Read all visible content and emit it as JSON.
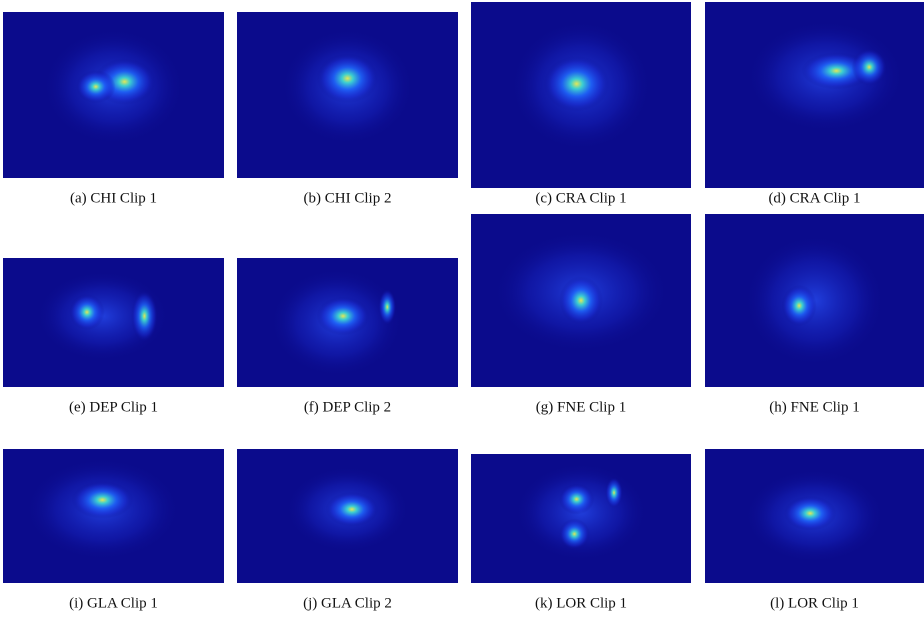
{
  "figure": {
    "panels": [
      {
        "caption": "(a) CHI Clip 1"
      },
      {
        "caption": "(b) CHI Clip 2"
      },
      {
        "caption": "(c) CRA Clip 1"
      },
      {
        "caption": "(d) CRA Clip 1"
      },
      {
        "caption": "(e) DEP Clip 1"
      },
      {
        "caption": "(f) DEP Clip 2"
      },
      {
        "caption": "(g) FNE Clip 1"
      },
      {
        "caption": "(h) FNE Clip 1"
      },
      {
        "caption": "(i) GLA Clip 1"
      },
      {
        "caption": "(j) GLA Clip 2"
      },
      {
        "caption": "(k) LOR Clip 1"
      },
      {
        "caption": "(l) LOR Clip 1"
      }
    ]
  }
}
